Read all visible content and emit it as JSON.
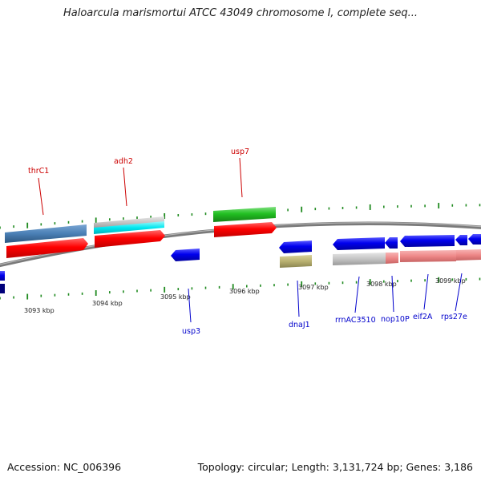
{
  "title": "Haloarcula marismortui ATCC 43049 chromosome I, complete seq...",
  "footer": {
    "accession": "Accession: NC_006396",
    "summary": "Topology: circular; Length: 3,131,724 bp; Genes: 3,186"
  },
  "colors": {
    "backbone": "#7a7a7a",
    "tick": "#1f8a1f",
    "top_label": "#cc0000",
    "bottom_label": "#0000cc",
    "red_feature": "#ff0000",
    "blue_feature": "#0000ee",
    "green_feature": "#22c022",
    "cyan_feature": "#00e8f0",
    "steel_feature": "#4a7fb5",
    "khaki_feature": "#b8b070",
    "grey_feature": "#c4c4c4",
    "pink_feature": "#ee8888"
  },
  "scale_labels": [
    "3093 kbp",
    "3094 kbp",
    "3095 kbp",
    "3096 kbp",
    "3097 kbp",
    "3098 kbp",
    "3099 kbp"
  ],
  "top_genes": [
    "thrC1",
    "adh2",
    "usp7"
  ],
  "bottom_genes": [
    "usp3",
    "dnaJ1",
    "rrnAC3510",
    "nop10P",
    "eif2A",
    "rps27e"
  ]
}
